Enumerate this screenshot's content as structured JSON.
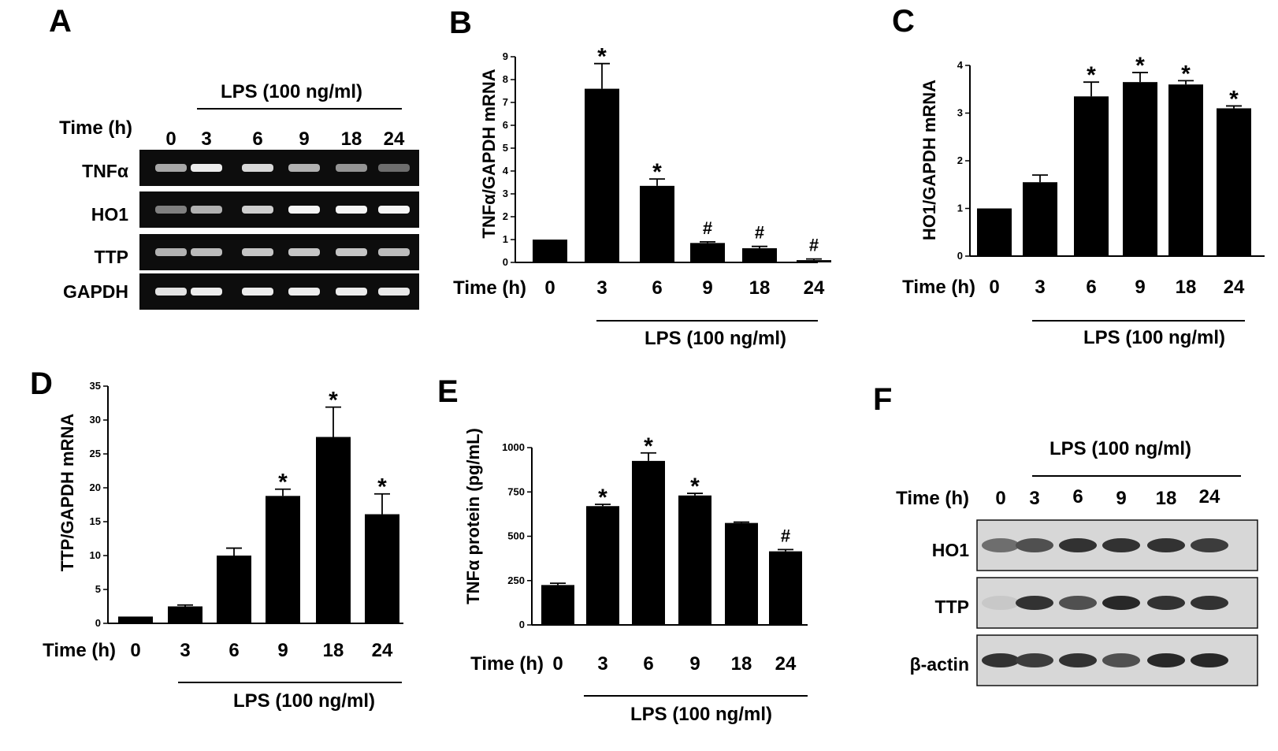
{
  "panel_a": {
    "letter": "A",
    "treatment": "LPS (100 ng/ml)",
    "time_label": "Time (h)",
    "lanes": [
      "0",
      "3",
      "6",
      "9",
      "18",
      "24"
    ],
    "rows": [
      {
        "label": "TNFα",
        "intensity": [
          0.55,
          0.9,
          0.8,
          0.6,
          0.45,
          0.25
        ]
      },
      {
        "label": "HO1",
        "intensity": [
          0.35,
          0.6,
          0.75,
          0.95,
          0.95,
          0.95
        ]
      },
      {
        "label": "TTP",
        "intensity": [
          0.6,
          0.65,
          0.7,
          0.7,
          0.7,
          0.65
        ]
      },
      {
        "label": "GAPDH",
        "intensity": [
          0.85,
          0.9,
          0.9,
          0.9,
          0.9,
          0.88
        ]
      }
    ]
  },
  "panel_f": {
    "letter": "F",
    "treatment": "LPS (100 ng/ml)",
    "time_label": "Time (h)",
    "lanes": [
      "0",
      "3",
      "6",
      "9",
      "18",
      "24"
    ],
    "rows": [
      {
        "label": "HO1",
        "intensity": [
          0.55,
          0.7,
          0.85,
          0.85,
          0.85,
          0.8
        ]
      },
      {
        "label": "TTP",
        "intensity": [
          0.1,
          0.85,
          0.7,
          0.9,
          0.85,
          0.85
        ]
      },
      {
        "label": "β-actin",
        "intensity": [
          0.85,
          0.8,
          0.85,
          0.7,
          0.9,
          0.9
        ]
      }
    ]
  },
  "chart_data": [
    {
      "panel": "B",
      "type": "bar",
      "ylabel": "TNFα/GAPDH mRNA",
      "x_title": "Time (h)",
      "treatment": "LPS (100 ng/ml)",
      "categories": [
        "0",
        "3",
        "6",
        "9",
        "18",
        "24"
      ],
      "values": [
        1.0,
        7.6,
        3.35,
        0.85,
        0.62,
        0.1
      ],
      "errors": [
        0,
        1.1,
        0.3,
        0.05,
        0.08,
        0.05
      ],
      "marks": [
        "",
        "*",
        "*",
        "#",
        "#",
        "#"
      ],
      "ylim": [
        0,
        9
      ],
      "yticks": [
        0,
        1,
        2,
        3,
        4,
        5,
        6,
        7,
        8,
        9
      ]
    },
    {
      "panel": "C",
      "type": "bar",
      "ylabel": "HO1/GAPDH mRNA",
      "x_title": "Time (h)",
      "treatment": "LPS (100 ng/ml)",
      "categories": [
        "0",
        "3",
        "6",
        "9",
        "18",
        "24"
      ],
      "values": [
        1.0,
        1.55,
        3.35,
        3.65,
        3.6,
        3.1
      ],
      "errors": [
        0,
        0.15,
        0.3,
        0.2,
        0.08,
        0.05
      ],
      "marks": [
        "",
        "",
        "*",
        "*",
        "*",
        "*"
      ],
      "ylim": [
        0,
        4
      ],
      "yticks": [
        0,
        1,
        2,
        3,
        4
      ]
    },
    {
      "panel": "D",
      "type": "bar",
      "ylabel": "TTP/GAPDH mRNA",
      "x_title": "Time (h)",
      "treatment": "LPS (100 ng/ml)",
      "categories": [
        "0",
        "3",
        "6",
        "9",
        "18",
        "24"
      ],
      "values": [
        1.0,
        2.5,
        10.0,
        18.8,
        27.5,
        16.1
      ],
      "errors": [
        0,
        0.2,
        1.1,
        1.0,
        4.4,
        3.0
      ],
      "marks": [
        "",
        "",
        "",
        "*",
        "*",
        "*"
      ],
      "ylim": [
        0,
        35
      ],
      "yticks": [
        0,
        5,
        10,
        15,
        20,
        25,
        30,
        35
      ]
    },
    {
      "panel": "E",
      "type": "bar",
      "ylabel": "TNFα protein (pg/mL)",
      "x_title": "Time (h)",
      "treatment": "LPS (100 ng/ml)",
      "categories": [
        "0",
        "3",
        "6",
        "9",
        "18",
        "24"
      ],
      "values": [
        225,
        670,
        925,
        730,
        575,
        415
      ],
      "errors": [
        10,
        10,
        45,
        12,
        5,
        10
      ],
      "marks": [
        "",
        "*",
        "*",
        "*",
        "",
        "#"
      ],
      "ylim": [
        0,
        1000
      ],
      "yticks": [
        0,
        250,
        500,
        750,
        1000
      ]
    }
  ]
}
